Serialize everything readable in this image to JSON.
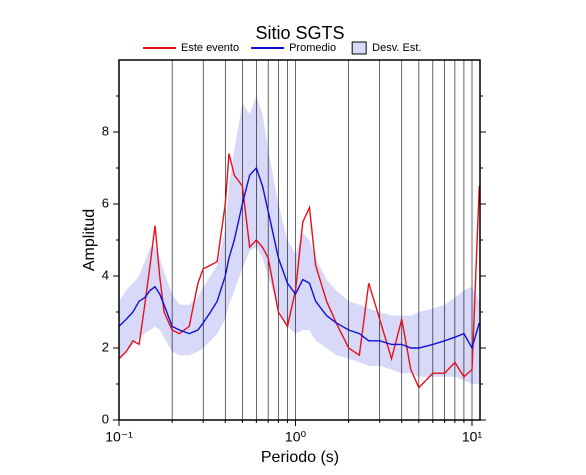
{
  "chart_data": {
    "type": "line",
    "title": "Sitio SGTS",
    "xlabel": "Periodo (s)",
    "ylabel": "Amplitud",
    "xscale": "log",
    "grid": true,
    "legend": "top",
    "xlim": [
      0.1,
      11.1
    ],
    "ylim": [
      0,
      10
    ],
    "xticks": [
      {
        "value": 0.1,
        "label": "10⁻¹"
      },
      {
        "value": 1,
        "label": "10⁰"
      },
      {
        "value": 10,
        "label": "10¹"
      }
    ],
    "xgrid": [
      0.2,
      0.3,
      0.4,
      0.5,
      0.6,
      0.7,
      0.8,
      0.9,
      2,
      3,
      4,
      5,
      6,
      7,
      8,
      9
    ],
    "yticks": [
      0,
      2,
      4,
      6,
      8
    ],
    "yminor": [
      1,
      3,
      5,
      7,
      9
    ],
    "x": [
      0.1,
      0.11,
      0.12,
      0.13,
      0.14,
      0.15,
      0.16,
      0.17,
      0.18,
      0.2,
      0.22,
      0.25,
      0.28,
      0.3,
      0.33,
      0.36,
      0.4,
      0.42,
      0.45,
      0.5,
      0.55,
      0.6,
      0.65,
      0.7,
      0.8,
      0.9,
      1.0,
      1.1,
      1.2,
      1.3,
      1.5,
      1.7,
      2.0,
      2.3,
      2.6,
      3.0,
      3.5,
      4.0,
      4.5,
      5.0,
      6.0,
      7.0,
      8.0,
      9.0,
      10,
      11
    ],
    "band": {
      "name": "Desv. Est.",
      "color": "#d8d8f8",
      "edge": "#000000",
      "low": [
        1.7,
        1.9,
        2.1,
        2.3,
        2.4,
        2.5,
        2.6,
        2.5,
        2.3,
        1.9,
        1.8,
        1.8,
        1.9,
        2.0,
        2.2,
        2.4,
        2.8,
        3.2,
        3.6,
        4.2,
        4.7,
        4.8,
        4.5,
        4.0,
        3.1,
        2.6,
        2.4,
        2.5,
        2.5,
        2.2,
        2.0,
        1.8,
        1.7,
        1.6,
        1.5,
        1.5,
        1.4,
        1.3,
        1.3,
        1.2,
        1.2,
        1.2,
        1.2,
        1.1,
        1.0,
        1.0
      ],
      "high": [
        3.3,
        3.6,
        3.8,
        4.0,
        4.4,
        4.8,
        4.8,
        4.5,
        4.1,
        3.5,
        3.2,
        3.2,
        3.4,
        3.7,
        4.0,
        4.3,
        5.3,
        6.5,
        7.5,
        8.8,
        8.5,
        9.0,
        8.5,
        7.5,
        6.0,
        5.0,
        4.6,
        5.2,
        5.0,
        4.5,
        3.9,
        3.6,
        3.3,
        3.2,
        3.1,
        3.0,
        2.9,
        2.9,
        2.9,
        3.0,
        3.1,
        3.2,
        3.4,
        3.6,
        3.7,
        3.3
      ]
    },
    "series": [
      {
        "name": "Este evento",
        "color": "#e8101a",
        "values": [
          1.7,
          1.9,
          2.2,
          2.1,
          3.2,
          4.3,
          5.4,
          4.0,
          3.0,
          2.5,
          2.4,
          2.6,
          3.8,
          4.2,
          4.3,
          4.4,
          6.0,
          7.4,
          6.8,
          6.5,
          4.8,
          5.0,
          4.8,
          4.5,
          3.0,
          2.6,
          3.6,
          5.5,
          5.9,
          4.3,
          3.3,
          2.7,
          2.0,
          1.8,
          3.8,
          2.8,
          1.7,
          2.8,
          1.4,
          0.9,
          1.3,
          1.3,
          1.6,
          1.2,
          1.4,
          6.5
        ]
      },
      {
        "name": "Promedio",
        "color": "#1010d8",
        "values": [
          2.6,
          2.8,
          3.0,
          3.3,
          3.4,
          3.6,
          3.7,
          3.5,
          3.2,
          2.6,
          2.5,
          2.4,
          2.5,
          2.7,
          3.0,
          3.3,
          4.0,
          4.5,
          5.0,
          6.0,
          6.8,
          7.0,
          6.5,
          5.8,
          4.5,
          3.8,
          3.5,
          3.9,
          3.8,
          3.3,
          2.9,
          2.7,
          2.5,
          2.4,
          2.2,
          2.2,
          2.1,
          2.1,
          2.0,
          2.0,
          2.1,
          2.2,
          2.3,
          2.4,
          2.0,
          2.7
        ]
      }
    ]
  }
}
